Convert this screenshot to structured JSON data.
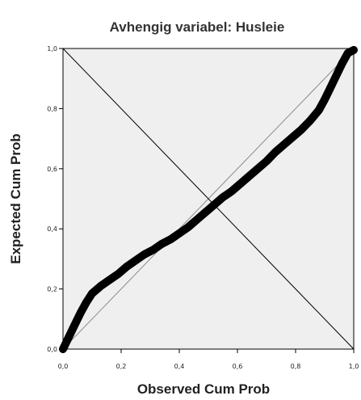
{
  "chart_data": {
    "type": "line",
    "title": "Avhengig variabel: Husleie",
    "xlabel": "Observed Cum Prob",
    "ylabel": "Expected Cum Prob",
    "xlim": [
      0,
      1
    ],
    "ylim": [
      0,
      1
    ],
    "x_ticks": [
      "0,0",
      "0,2",
      "0,4",
      "0,6",
      "0,8",
      "1,0"
    ],
    "y_ticks": [
      "0,0",
      "0,2",
      "0,4",
      "0,6",
      "0,8",
      "1,0"
    ],
    "grid": false,
    "plot_background": "#efefef",
    "series": [
      {
        "x": [
          0.0,
          0.02,
          0.04,
          0.06,
          0.08,
          0.1,
          0.13,
          0.16,
          0.19,
          0.22,
          0.25,
          0.28,
          0.31,
          0.34,
          0.37,
          0.4,
          0.43,
          0.46,
          0.49,
          0.52,
          0.55,
          0.58,
          0.61,
          0.64,
          0.67,
          0.7,
          0.73,
          0.76,
          0.79,
          0.82,
          0.85,
          0.88,
          0.9,
          0.92,
          0.94,
          0.96,
          0.98,
          1.0
        ],
        "y": [
          0.0,
          0.04,
          0.08,
          0.12,
          0.155,
          0.185,
          0.21,
          0.23,
          0.25,
          0.275,
          0.295,
          0.315,
          0.33,
          0.35,
          0.365,
          0.385,
          0.405,
          0.43,
          0.455,
          0.48,
          0.505,
          0.525,
          0.55,
          0.575,
          0.6,
          0.625,
          0.655,
          0.68,
          0.705,
          0.73,
          0.76,
          0.795,
          0.83,
          0.87,
          0.91,
          0.95,
          0.985,
          0.995
        ]
      }
    ],
    "reference_lines": [
      {
        "from": [
          0,
          0
        ],
        "to": [
          1,
          1
        ],
        "color": "#8c8c8c"
      },
      {
        "from": [
          0,
          1
        ],
        "to": [
          1,
          0
        ],
        "color": "#000000"
      }
    ]
  }
}
